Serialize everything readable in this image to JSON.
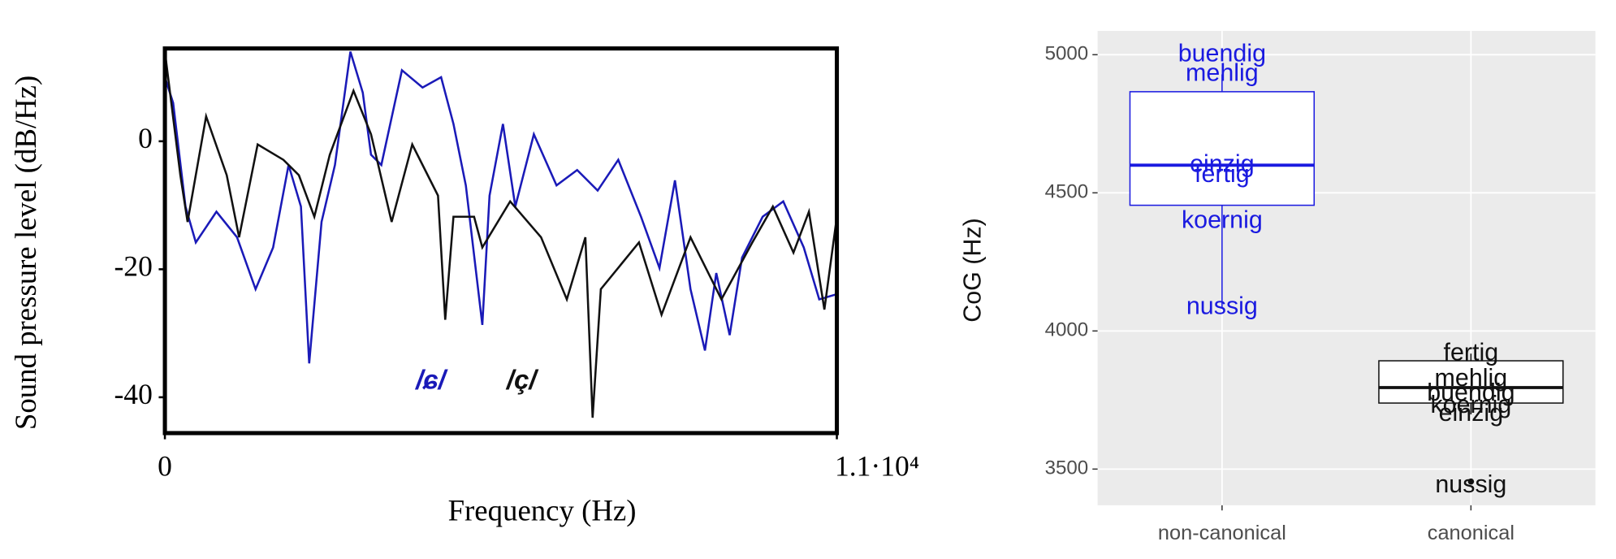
{
  "chart_data": [
    {
      "type": "line",
      "ylabel": "Sound pressure level (dB/Hz)",
      "xlabel": "Frequency (Hz)",
      "xlim": [
        0,
        11000
      ],
      "xticks": [
        0,
        {
          "value": 11000,
          "label": "1.1·10⁴"
        }
      ],
      "ylim": [
        -45.6,
        14.5
      ],
      "yticks": [
        0,
        -20,
        -40
      ],
      "series": [
        {
          "name": "/ɕ/",
          "color": "#1a1ab8",
          "x": [
            0,
            135,
            337,
            506,
            843,
            1181,
            1485,
            1771,
            2024,
            2227,
            2362,
            2564,
            2784,
            3037,
            3239,
            3374,
            3543,
            3880,
            4218,
            4521,
            4724,
            4926,
            5196,
            5314,
            5533,
            5736,
            6040,
            6411,
            6748,
            7085,
            7422,
            7794,
            8097,
            8350,
            8604,
            8840,
            9026,
            9245,
            9448,
            9785,
            10122,
            10459,
            10712,
            11000
          ],
          "values": [
            10.0,
            6.0,
            -10.2,
            -15.8,
            -11.0,
            -15.0,
            -23.1,
            -16.6,
            -3.7,
            -10.2,
            -34.7,
            -12.6,
            -3.7,
            14.0,
            7.6,
            -2.1,
            -3.7,
            11.1,
            8.4,
            10.0,
            2.7,
            -6.9,
            -28.7,
            -8.5,
            2.7,
            -10.2,
            1.1,
            -6.9,
            -4.5,
            -7.7,
            -2.9,
            -11.8,
            -19.8,
            -6.1,
            -23.1,
            -32.7,
            -20.6,
            -30.3,
            -18.2,
            -11.8,
            -9.4,
            -16.6,
            -24.7,
            -23.9
          ]
        },
        {
          "name": "/ç/",
          "color": "#111111",
          "x": [
            0,
            253,
            371,
            675,
            1012,
            1215,
            1518,
            1940,
            2193,
            2446,
            2699,
            3087,
            3374,
            3711,
            4049,
            4471,
            4589,
            4724,
            5061,
            5196,
            5651,
            6158,
            6579,
            6883,
            7001,
            7136,
            7760,
            8131,
            8604,
            9110,
            9616,
            9953,
            10290,
            10543,
            10796,
            11000
          ],
          "values": [
            14.0,
            -5.3,
            -12.6,
            3.9,
            -5.3,
            -15.0,
            -0.5,
            -2.9,
            -5.3,
            -11.8,
            -2.1,
            7.9,
            1.1,
            -12.6,
            -0.5,
            -8.5,
            -27.9,
            -11.8,
            -11.8,
            -16.6,
            -9.4,
            -15.0,
            -24.7,
            -15.0,
            -43.2,
            -23.1,
            -15.8,
            -27.1,
            -15.0,
            -24.7,
            -15.8,
            -10.2,
            -17.4,
            -11.0,
            -26.3,
            -11.8
          ]
        }
      ]
    },
    {
      "type": "box",
      "ylabel": "CoG (Hz)",
      "categories": [
        "non-canonical",
        "canonical"
      ],
      "ylim": [
        3369,
        5086
      ],
      "yticks": [
        3500,
        4000,
        4500,
        5000
      ],
      "grid": true,
      "boxes": [
        {
          "color": "#1a1ae0",
          "q1": 4455,
          "median": 4600,
          "q3": 4866,
          "whisker_low": 4085,
          "whisker_high": 4929
        },
        {
          "color": "#111111",
          "q1": 3739,
          "median": 3795,
          "q3": 3892,
          "whisker_low": 3698,
          "whisker_high": 3918
        }
      ],
      "outliers": [
        {
          "category": 1,
          "value": 3455
        }
      ],
      "points": [
        {
          "category": 0,
          "name": "buendig",
          "value": 5000
        },
        {
          "category": 0,
          "name": "mehlig",
          "value": 4929
        },
        {
          "category": 0,
          "name": "einzig",
          "value": 4600
        },
        {
          "category": 0,
          "name": "fertig",
          "value": 4563
        },
        {
          "category": 0,
          "name": "koernig",
          "value": 4396
        },
        {
          "category": 0,
          "name": "nussig",
          "value": 4085
        },
        {
          "category": 1,
          "name": "fertig",
          "value": 3918
        },
        {
          "category": 1,
          "name": "mehlig",
          "value": 3825
        },
        {
          "category": 1,
          "name": "buendig",
          "value": 3772
        },
        {
          "category": 1,
          "name": "koernig",
          "value": 3728
        },
        {
          "category": 1,
          "name": "einzig",
          "value": 3698
        },
        {
          "category": 1,
          "name": "nussig",
          "value": 3440
        }
      ]
    }
  ]
}
